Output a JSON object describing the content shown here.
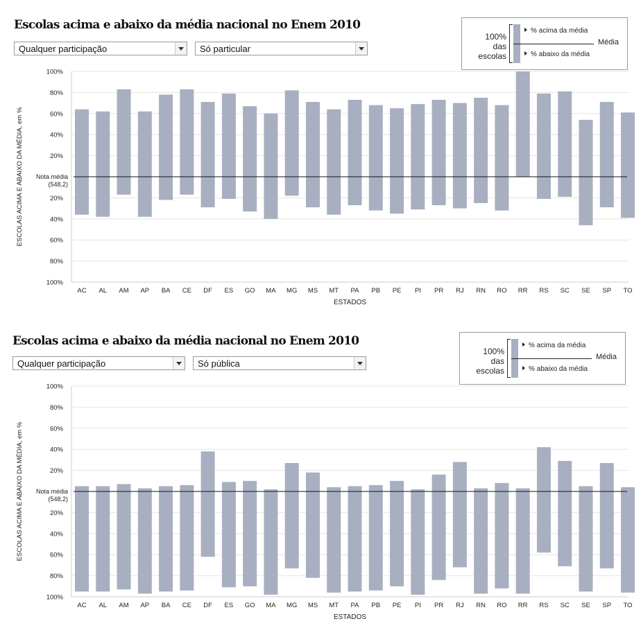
{
  "charts": [
    {
      "title": "Escolas acima e abaixo da média nacional no Enem 2010",
      "filter_participation": "Qualquer participação",
      "filter_type": "Só particular",
      "legend": {
        "pct_line1": "100%",
        "pct_line2": "das",
        "pct_line3": "escolas",
        "above": "% acima da média",
        "below": "% abaixo da média",
        "media": "Média"
      }
    },
    {
      "title": "Escolas acima e abaixo da média nacional no Enem 2010",
      "filter_participation": "Qualquer participação",
      "filter_type": "Só pública",
      "legend": {
        "pct_line1": "100%",
        "pct_line2": "das",
        "pct_line3": "escolas",
        "above": "% acima da média",
        "below": "% abaixo da média",
        "media": "Média"
      }
    }
  ],
  "chart_data": [
    {
      "type": "bar",
      "ylabel": "ESCOLAS ACIMA E ABAIXO DA MÉDIA, em %",
      "xlabel": "ESTADOS",
      "baseline_label": "Nota média",
      "baseline_value": "(548,2)",
      "y_ticks_above": [
        "100%",
        "80%",
        "60%",
        "40%",
        "20%"
      ],
      "y_ticks_below": [
        "20%",
        "40%",
        "60%",
        "80%",
        "100%"
      ],
      "categories": [
        "AC",
        "AL",
        "AM",
        "AP",
        "BA",
        "CE",
        "DF",
        "ES",
        "GO",
        "MA",
        "MG",
        "MS",
        "MT",
        "PA",
        "PB",
        "PE",
        "PI",
        "PR",
        "RJ",
        "RN",
        "RO",
        "RR",
        "RS",
        "SC",
        "SE",
        "SP",
        "TO"
      ],
      "series": [
        {
          "name": "% acima da média",
          "values": [
            64,
            62,
            83,
            62,
            78,
            83,
            71,
            79,
            67,
            60,
            82,
            71,
            64,
            73,
            68,
            65,
            69,
            73,
            70,
            75,
            68,
            100,
            79,
            81,
            54,
            71,
            61
          ]
        },
        {
          "name": "% abaixo da média",
          "values": [
            36,
            38,
            17,
            38,
            22,
            17,
            29,
            21,
            33,
            40,
            18,
            29,
            36,
            27,
            32,
            35,
            31,
            27,
            30,
            25,
            32,
            0,
            21,
            19,
            46,
            29,
            39
          ]
        }
      ],
      "ylim_above": [
        0,
        100
      ],
      "ylim_below": [
        0,
        100
      ],
      "grid": true
    },
    {
      "type": "bar",
      "ylabel": "ESCOLAS ACIMA E ABAIXO DA MÉDIA, em %",
      "xlabel": "ESTADOS",
      "baseline_label": "Nota média",
      "baseline_value": "(548,2)",
      "y_ticks_above": [
        "100%",
        "80%",
        "60%",
        "40%",
        "20%"
      ],
      "y_ticks_below": [
        "20%",
        "40%",
        "60%",
        "80%",
        "100%"
      ],
      "categories": [
        "AC",
        "AL",
        "AM",
        "AP",
        "BA",
        "CE",
        "DF",
        "ES",
        "GO",
        "MA",
        "MG",
        "MS",
        "MT",
        "PA",
        "PB",
        "PE",
        "PI",
        "PR",
        "RJ",
        "RN",
        "RO",
        "RR",
        "RS",
        "SC",
        "SE",
        "SP",
        "TO"
      ],
      "series": [
        {
          "name": "% acima da média",
          "values": [
            5,
            5,
            7,
            3,
            5,
            6,
            38,
            9,
            10,
            2,
            27,
            18,
            4,
            5,
            6,
            10,
            2,
            16,
            28,
            3,
            8,
            3,
            42,
            29,
            5,
            27,
            4
          ]
        },
        {
          "name": "% abaixo da média",
          "values": [
            95,
            95,
            93,
            97,
            95,
            94,
            62,
            91,
            90,
            98,
            73,
            82,
            96,
            95,
            94,
            90,
            98,
            84,
            72,
            97,
            92,
            97,
            58,
            71,
            95,
            73,
            96
          ]
        }
      ],
      "ylim_above": [
        0,
        100
      ],
      "ylim_below": [
        0,
        100
      ],
      "grid": true
    }
  ],
  "colors": {
    "bar": "#a7afc0",
    "grid": "#e4e4e4",
    "baseline": "#111111",
    "axis": "#cccccc"
  }
}
